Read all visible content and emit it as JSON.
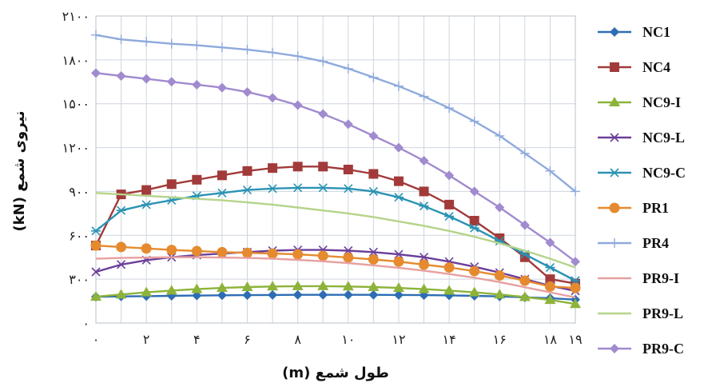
{
  "chart_data": {
    "type": "line",
    "xlabel": "طول شمع (m)",
    "ylabel": "نیروی شمع (kN)",
    "xlim": [
      0,
      19
    ],
    "ylim": [
      0,
      2100
    ],
    "x_ticks": [
      0,
      2,
      4,
      6,
      8,
      10,
      12,
      14,
      16,
      18,
      19
    ],
    "x_tick_labels": [
      "۰",
      "۲",
      "۴",
      "۶",
      "۸",
      "۱۰",
      "۱۲",
      "۱۴",
      "۱۶",
      "۱۸",
      "۱۹"
    ],
    "y_ticks": [
      0,
      300,
      600,
      900,
      1200,
      1500,
      1800,
      2100
    ],
    "y_tick_labels": [
      "۰",
      "۳۰۰",
      "۶۰۰",
      "۹۰۰",
      "۱۲۰۰",
      "۱۵۰۰",
      "۱۸۰۰",
      "۲۱۰۰"
    ],
    "grid": true,
    "legend_position": "right",
    "series": [
      {
        "name": "NC1",
        "color": "#2E6DB4",
        "marker": "diamond",
        "x": [
          0,
          1,
          2,
          3,
          4,
          5,
          6,
          7,
          8,
          9,
          10,
          11,
          12,
          13,
          14,
          15,
          16,
          17,
          18,
          19
        ],
        "y": [
          180,
          182,
          184,
          186,
          188,
          190,
          191,
          192,
          193,
          193,
          193,
          193,
          192,
          191,
          189,
          186,
          182,
          176,
          170,
          160
        ]
      },
      {
        "name": "NC4",
        "color": "#A23A3A",
        "marker": "square",
        "x": [
          0,
          1,
          2,
          3,
          4,
          5,
          6,
          7,
          8,
          9,
          10,
          11,
          12,
          13,
          14,
          15,
          16,
          17,
          18,
          19
        ],
        "y": [
          530,
          880,
          910,
          950,
          980,
          1010,
          1040,
          1060,
          1070,
          1070,
          1050,
          1020,
          970,
          900,
          810,
          700,
          580,
          450,
          300,
          270
        ]
      },
      {
        "name": "NC9-I",
        "color": "#8DB33A",
        "marker": "triangle",
        "x": [
          0,
          1,
          2,
          3,
          4,
          5,
          6,
          7,
          8,
          9,
          10,
          11,
          12,
          13,
          14,
          15,
          16,
          17,
          18,
          19
        ],
        "y": [
          180,
          195,
          210,
          222,
          232,
          240,
          246,
          250,
          252,
          252,
          250,
          246,
          240,
          232,
          222,
          210,
          195,
          178,
          158,
          130
        ]
      },
      {
        "name": "NC9-L",
        "color": "#6B3E9A",
        "marker": "x",
        "x": [
          0,
          1,
          2,
          3,
          4,
          5,
          6,
          7,
          8,
          9,
          10,
          11,
          12,
          13,
          14,
          15,
          16,
          17,
          18,
          19
        ],
        "y": [
          350,
          400,
          430,
          450,
          465,
          475,
          485,
          495,
          500,
          500,
          495,
          485,
          470,
          450,
          420,
          385,
          345,
          300,
          255,
          220
        ]
      },
      {
        "name": "NC9-C",
        "color": "#2A93B3",
        "marker": "asterisk",
        "x": [
          0,
          1,
          2,
          3,
          4,
          5,
          6,
          7,
          8,
          9,
          10,
          11,
          12,
          13,
          14,
          15,
          16,
          17,
          18,
          19
        ],
        "y": [
          630,
          770,
          810,
          840,
          870,
          890,
          910,
          920,
          925,
          925,
          920,
          900,
          860,
          800,
          730,
          650,
          560,
          470,
          380,
          290
        ]
      },
      {
        "name": "PR1",
        "color": "#E58A2E",
        "marker": "circle",
        "x": [
          0,
          1,
          2,
          3,
          4,
          5,
          6,
          7,
          8,
          9,
          10,
          11,
          12,
          13,
          14,
          15,
          16,
          17,
          18,
          19
        ],
        "y": [
          530,
          520,
          510,
          500,
          492,
          485,
          480,
          475,
          470,
          460,
          448,
          435,
          420,
          400,
          380,
          355,
          325,
          290,
          250,
          240
        ]
      },
      {
        "name": "PR4",
        "color": "#8FAADC",
        "marker": "plus",
        "x": [
          0,
          1,
          2,
          3,
          4,
          5,
          6,
          7,
          8,
          9,
          10,
          11,
          12,
          13,
          14,
          15,
          16,
          17,
          18,
          19
        ],
        "y": [
          1970,
          1940,
          1925,
          1910,
          1900,
          1885,
          1870,
          1850,
          1825,
          1790,
          1740,
          1680,
          1620,
          1550,
          1470,
          1380,
          1280,
          1160,
          1040,
          900
        ]
      },
      {
        "name": "PR9-I",
        "color": "#E8A0A0",
        "marker": "none",
        "x": [
          0,
          1,
          2,
          3,
          4,
          5,
          6,
          7,
          8,
          9,
          10,
          11,
          12,
          13,
          14,
          15,
          16,
          17,
          18,
          19
        ],
        "y": [
          440,
          445,
          448,
          450,
          450,
          448,
          445,
          440,
          432,
          422,
          410,
          395,
          378,
          358,
          335,
          310,
          280,
          245,
          210,
          175
        ]
      },
      {
        "name": "PR9-L",
        "color": "#B5D48A",
        "marker": "none",
        "x": [
          0,
          1,
          2,
          3,
          4,
          5,
          6,
          7,
          8,
          9,
          10,
          11,
          12,
          13,
          14,
          15,
          16,
          17,
          18,
          19
        ],
        "y": [
          890,
          880,
          870,
          860,
          850,
          840,
          825,
          810,
          790,
          770,
          750,
          725,
          695,
          665,
          630,
          590,
          545,
          495,
          440,
          380
        ]
      },
      {
        "name": "PR9-C",
        "color": "#A18BCF",
        "marker": "diamond",
        "x": [
          0,
          1,
          2,
          3,
          4,
          5,
          6,
          7,
          8,
          9,
          10,
          11,
          12,
          13,
          14,
          15,
          16,
          17,
          18,
          19
        ],
        "y": [
          1710,
          1690,
          1670,
          1650,
          1630,
          1610,
          1580,
          1540,
          1490,
          1430,
          1360,
          1280,
          1200,
          1110,
          1010,
          900,
          790,
          670,
          550,
          420
        ]
      }
    ],
    "legend_labels": [
      "NC1",
      "NC4",
      "NC9-I",
      "NC9-L",
      "NC9-C",
      "PR1",
      "PR4",
      "PR9-I",
      "PR9-L",
      "PR9-C"
    ]
  }
}
